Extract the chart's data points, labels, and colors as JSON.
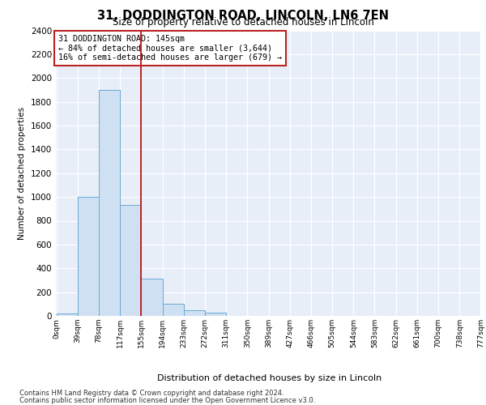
{
  "title": "31, DODDINGTON ROAD, LINCOLN, LN6 7EN",
  "subtitle": "Size of property relative to detached houses in Lincoln",
  "xlabel": "Distribution of detached houses by size in Lincoln",
  "ylabel": "Number of detached properties",
  "bin_labels": [
    "0sqm",
    "39sqm",
    "78sqm",
    "117sqm",
    "155sqm",
    "194sqm",
    "233sqm",
    "272sqm",
    "311sqm",
    "350sqm",
    "389sqm",
    "427sqm",
    "466sqm",
    "505sqm",
    "544sqm",
    "583sqm",
    "622sqm",
    "661sqm",
    "700sqm",
    "738sqm",
    "777sqm"
  ],
  "bar_values": [
    20,
    1000,
    1900,
    930,
    310,
    100,
    45,
    25,
    0,
    0,
    0,
    0,
    0,
    0,
    0,
    0,
    0,
    0,
    0,
    0
  ],
  "bar_color": "#cfe0f3",
  "bar_edge_color": "#6aaad4",
  "property_size_bin": 4,
  "annotation_line1": "31 DODDINGTON ROAD: 145sqm",
  "annotation_line2": "← 84% of detached houses are smaller (3,644)",
  "annotation_line3": "16% of semi-detached houses are larger (679) →",
  "vline_color": "#bb2222",
  "annotation_box_edge": "#bb2222",
  "ylim": [
    0,
    2400
  ],
  "yticks": [
    0,
    200,
    400,
    600,
    800,
    1000,
    1200,
    1400,
    1600,
    1800,
    2000,
    2200,
    2400
  ],
  "background_color": "#e8eef8",
  "footer_line1": "Contains HM Land Registry data © Crown copyright and database right 2024.",
  "footer_line2": "Contains public sector information licensed under the Open Government Licence v3.0.",
  "bin_width": 39,
  "n_bins": 20
}
